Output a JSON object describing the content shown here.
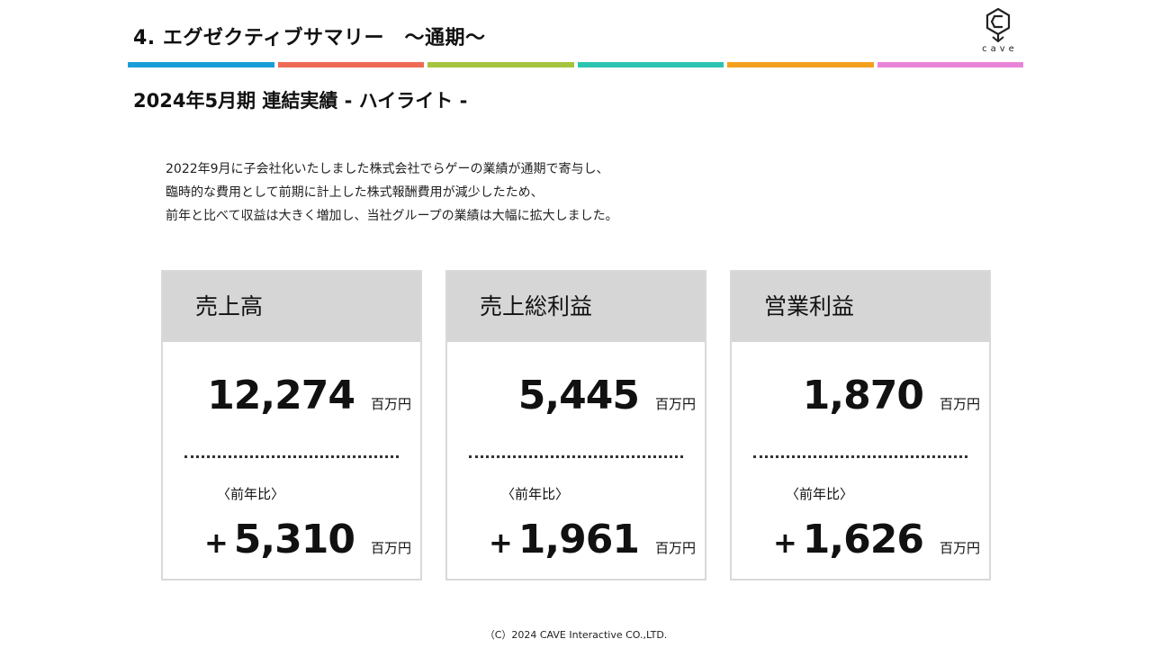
{
  "header": {
    "title": "4.  エグゼクティブサマリー　〜通期〜",
    "logo_text": "cave",
    "bar_colors": [
      "#1a9ed8",
      "#ef6a55",
      "#a6c43d",
      "#2bc4b0",
      "#f3a01e",
      "#e985d8"
    ]
  },
  "subtitle": "2024年5月期  連結実績  - ハイライト -",
  "description": [
    "2022年9月に子会社化いたしました株式会社でらゲーの業績が通期で寄与し、",
    "臨時的な費用として前期に計上した株式報酬費用が減少したため、",
    "前年と比べて収益は大きく増加し、当社グループの業績は大幅に拡大しました。"
  ],
  "cards": [
    {
      "title": "売上高",
      "value": "12,274",
      "unit": "百万円",
      "yoy_label": "〈前年比〉",
      "diff_sign": "+",
      "diff_value": "5,310",
      "diff_unit": "百万円"
    },
    {
      "title": "売上総利益",
      "value": "5,445",
      "unit": "百万円",
      "yoy_label": "〈前年比〉",
      "diff_sign": "+",
      "diff_value": "1,961",
      "diff_unit": "百万円"
    },
    {
      "title": "営業利益",
      "value": "1,870",
      "unit": "百万円",
      "yoy_label": "〈前年比〉",
      "diff_sign": "+",
      "diff_value": "1,626",
      "diff_unit": "百万円"
    }
  ],
  "footer": "（C）2024 CAVE Interactive CO.,LTD."
}
